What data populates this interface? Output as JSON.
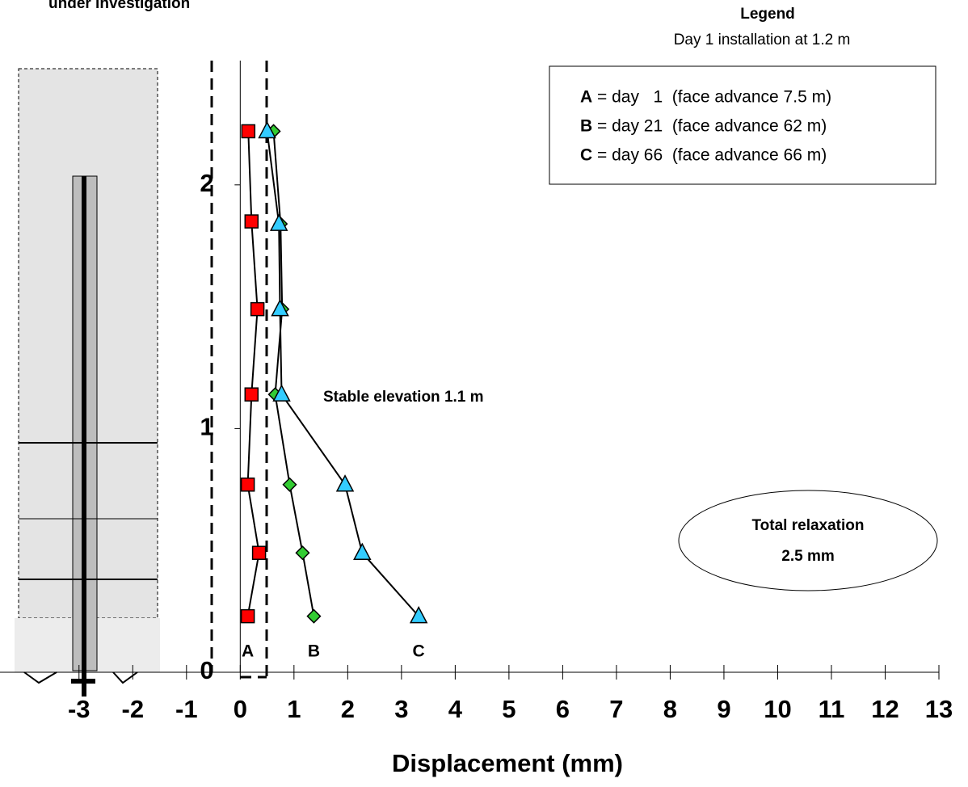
{
  "chart_data": {
    "type": "line",
    "title": "under investigation",
    "x_label": "Displacement (mm)",
    "xlim": [
      -4.47,
      13
    ],
    "ylim": [
      0,
      2.51
    ],
    "xticks": [
      -3,
      -2,
      -1,
      0,
      1,
      2,
      3,
      4,
      5,
      6,
      7,
      8,
      9,
      10,
      11,
      12,
      13
    ],
    "yticks": [
      0,
      1,
      2
    ],
    "series": [
      {
        "name": "A",
        "color": "#ff0000",
        "marker": "square",
        "x": [
          0.15,
          0.21,
          0.32,
          0.21,
          0.14,
          0.35,
          0.14
        ],
        "y": [
          2.22,
          1.85,
          1.49,
          1.14,
          0.77,
          0.49,
          0.23
        ]
      },
      {
        "name": "B",
        "color": "#33cc33",
        "marker": "diamond",
        "x": [
          0.62,
          0.75,
          0.78,
          0.65,
          0.92,
          1.16,
          1.37
        ],
        "y": [
          2.22,
          1.84,
          1.49,
          1.14,
          0.77,
          0.49,
          0.23
        ]
      },
      {
        "name": "C",
        "color": "#33ccff",
        "marker": "triangle",
        "x": [
          0.5,
          0.72,
          0.74,
          0.77,
          1.95,
          2.27,
          3.32
        ],
        "y": [
          2.22,
          1.84,
          1.49,
          1.14,
          0.77,
          0.49,
          0.23
        ]
      }
    ],
    "legend": {
      "title": "Legend",
      "subtitle": "Day 1 installation at 1.2 m",
      "entries": [
        "= day   1  (face advance 7.5 m)",
        "= day 21  (face advance 62 m)",
        "= day 66  (face advance 66 m)"
      ]
    },
    "annotations": [
      "Stable elevation 1.1 m",
      "Total relaxation",
      "2.5 mm"
    ]
  }
}
